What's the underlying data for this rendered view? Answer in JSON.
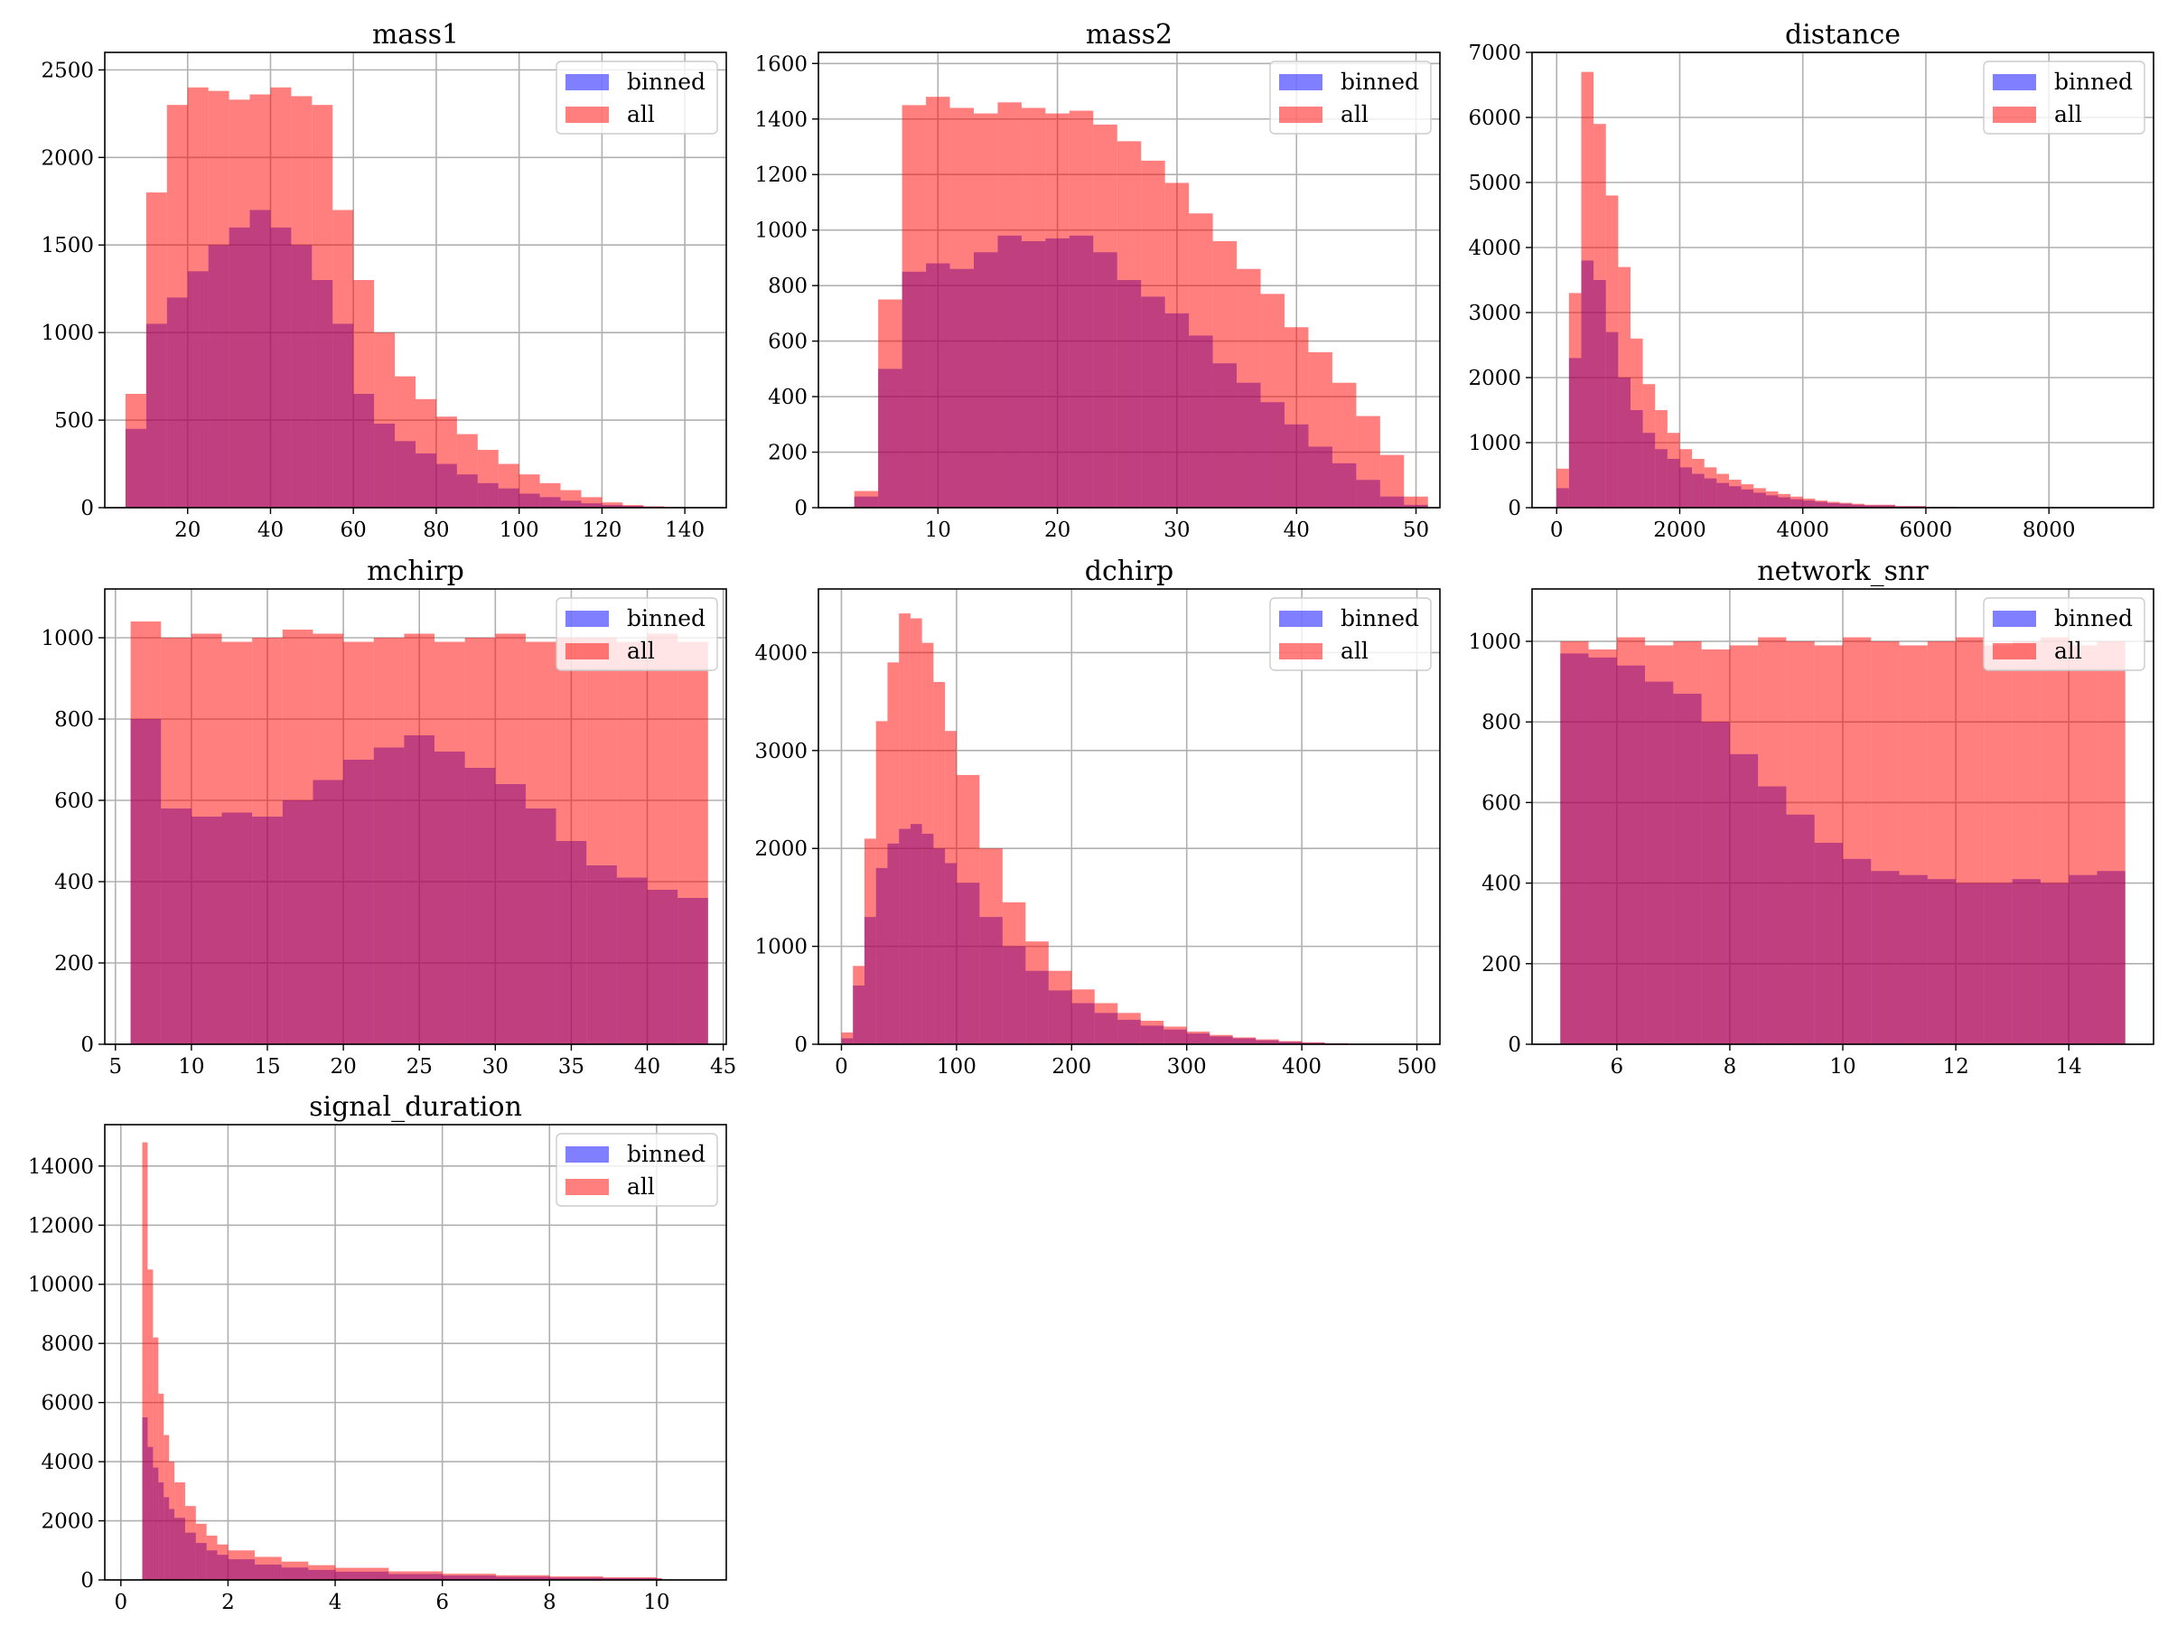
{
  "chart_data": [
    {
      "type": "bar",
      "title": "mass1",
      "xlim": [
        0,
        150
      ],
      "ylim": [
        0,
        2600
      ],
      "xticks": [
        20,
        40,
        60,
        80,
        100,
        120,
        140
      ],
      "yticks": [
        0,
        500,
        1000,
        1500,
        2000,
        2500
      ],
      "legend_position": "upper right",
      "series": [
        {
          "name": "binned",
          "color": "#0000ff",
          "opacity": 0.5,
          "x": [
            5,
            10,
            15,
            20,
            25,
            30,
            35,
            40,
            45,
            50,
            55,
            60,
            65,
            70,
            75,
            80,
            85,
            90,
            95,
            100,
            105,
            110,
            115,
            120,
            125,
            130,
            135,
            140
          ],
          "y": [
            450,
            1050,
            1200,
            1350,
            1500,
            1600,
            1700,
            1600,
            1500,
            1300,
            1050,
            650,
            480,
            380,
            310,
            250,
            190,
            140,
            110,
            80,
            60,
            40,
            25,
            15,
            10,
            5,
            3,
            2
          ]
        },
        {
          "name": "all",
          "color": "#ff0000",
          "opacity": 0.5,
          "x": [
            5,
            10,
            15,
            20,
            25,
            30,
            35,
            40,
            45,
            50,
            55,
            60,
            65,
            70,
            75,
            80,
            85,
            90,
            95,
            100,
            105,
            110,
            115,
            120,
            125,
            130,
            135,
            140
          ],
          "y": [
            650,
            1800,
            2300,
            2400,
            2380,
            2330,
            2360,
            2400,
            2350,
            2300,
            1700,
            1300,
            1000,
            750,
            620,
            520,
            420,
            330,
            250,
            190,
            140,
            100,
            60,
            30,
            15,
            8,
            4,
            2
          ]
        }
      ]
    },
    {
      "type": "bar",
      "title": "mass2",
      "xlim": [
        0,
        52
      ],
      "ylim": [
        0,
        1640
      ],
      "xticks": [
        10,
        20,
        30,
        40,
        50
      ],
      "yticks": [
        0,
        200,
        400,
        600,
        800,
        1000,
        1200,
        1400,
        1600
      ],
      "legend_position": "upper right",
      "series": [
        {
          "name": "binned",
          "color": "#0000ff",
          "opacity": 0.5,
          "x": [
            3,
            5,
            7,
            9,
            11,
            13,
            15,
            17,
            19,
            21,
            23,
            25,
            27,
            29,
            31,
            33,
            35,
            37,
            39,
            41,
            43,
            45,
            47,
            49
          ],
          "y": [
            40,
            500,
            850,
            880,
            860,
            920,
            980,
            960,
            970,
            980,
            920,
            820,
            760,
            700,
            620,
            520,
            450,
            380,
            300,
            220,
            160,
            100,
            40,
            10
          ]
        },
        {
          "name": "all",
          "color": "#ff0000",
          "opacity": 0.5,
          "x": [
            3,
            5,
            7,
            9,
            11,
            13,
            15,
            17,
            19,
            21,
            23,
            25,
            27,
            29,
            31,
            33,
            35,
            37,
            39,
            41,
            43,
            45,
            47,
            49
          ],
          "y": [
            60,
            750,
            1450,
            1480,
            1440,
            1420,
            1460,
            1440,
            1420,
            1430,
            1380,
            1320,
            1250,
            1170,
            1060,
            960,
            860,
            770,
            650,
            560,
            450,
            330,
            190,
            40
          ]
        }
      ]
    },
    {
      "type": "bar",
      "title": "distance",
      "xlim": [
        -400,
        9700
      ],
      "ylim": [
        0,
        7000
      ],
      "xticks": [
        0,
        2000,
        4000,
        6000,
        8000
      ],
      "yticks": [
        0,
        1000,
        2000,
        3000,
        4000,
        5000,
        6000,
        7000
      ],
      "legend_position": "upper right",
      "series": [
        {
          "name": "binned",
          "color": "#0000ff",
          "opacity": 0.5,
          "x": [
            0,
            200,
            400,
            600,
            800,
            1000,
            1200,
            1400,
            1600,
            1800,
            2000,
            2200,
            2400,
            2600,
            2800,
            3000,
            3200,
            3400,
            3600,
            3800,
            4000,
            4200,
            4400,
            4600,
            4800,
            5000,
            5500,
            6000,
            6500,
            7000
          ],
          "y": [
            300,
            2300,
            3800,
            3500,
            2700,
            2000,
            1500,
            1150,
            900,
            750,
            620,
            520,
            450,
            380,
            330,
            280,
            230,
            190,
            160,
            130,
            110,
            90,
            70,
            60,
            45,
            35,
            20,
            10,
            5,
            2
          ]
        },
        {
          "name": "all",
          "color": "#ff0000",
          "opacity": 0.5,
          "x": [
            0,
            200,
            400,
            600,
            800,
            1000,
            1200,
            1400,
            1600,
            1800,
            2000,
            2200,
            2400,
            2600,
            2800,
            3000,
            3200,
            3400,
            3600,
            3800,
            4000,
            4200,
            4400,
            4600,
            4800,
            5000,
            5500,
            6000,
            6500,
            7000
          ],
          "y": [
            600,
            3300,
            6700,
            5900,
            4800,
            3700,
            2600,
            1900,
            1500,
            1150,
            900,
            750,
            620,
            520,
            430,
            360,
            300,
            250,
            210,
            170,
            140,
            110,
            90,
            75,
            60,
            45,
            25,
            12,
            6,
            2
          ]
        }
      ]
    },
    {
      "type": "bar",
      "title": "mchirp",
      "xlim": [
        4.3,
        45.2
      ],
      "ylim": [
        0,
        1120
      ],
      "xticks": [
        5,
        10,
        15,
        20,
        25,
        30,
        35,
        40,
        45
      ],
      "yticks": [
        0,
        200,
        400,
        600,
        800,
        1000
      ],
      "legend_position": "upper right",
      "series": [
        {
          "name": "binned",
          "color": "#0000ff",
          "opacity": 0.5,
          "x": [
            6,
            8,
            10,
            12,
            14,
            16,
            18,
            20,
            22,
            24,
            26,
            28,
            30,
            32,
            34,
            36,
            38,
            40,
            42
          ],
          "y": [
            800,
            580,
            560,
            570,
            560,
            600,
            650,
            700,
            730,
            760,
            720,
            680,
            640,
            580,
            500,
            440,
            410,
            380,
            360
          ]
        },
        {
          "name": "all",
          "color": "#ff0000",
          "opacity": 0.5,
          "x": [
            6,
            8,
            10,
            12,
            14,
            16,
            18,
            20,
            22,
            24,
            26,
            28,
            30,
            32,
            34,
            36,
            38,
            40,
            42
          ],
          "y": [
            1040,
            1000,
            1010,
            990,
            1000,
            1020,
            1010,
            990,
            1000,
            1010,
            990,
            1000,
            1010,
            990,
            1000,
            1000,
            990,
            1010,
            990
          ]
        }
      ]
    },
    {
      "type": "bar",
      "title": "dchirp",
      "xlim": [
        -20,
        520
      ],
      "ylim": [
        0,
        4650
      ],
      "xticks": [
        0,
        100,
        200,
        300,
        400,
        500
      ],
      "yticks": [
        0,
        1000,
        2000,
        3000,
        4000
      ],
      "legend_position": "upper right",
      "series": [
        {
          "name": "binned",
          "color": "#0000ff",
          "opacity": 0.5,
          "x": [
            0,
            10,
            20,
            30,
            40,
            50,
            60,
            70,
            80,
            90,
            100,
            120,
            140,
            160,
            180,
            200,
            220,
            240,
            260,
            280,
            300,
            320,
            340,
            360,
            380,
            400,
            420,
            440
          ],
          "y": [
            60,
            600,
            1300,
            1800,
            2050,
            2200,
            2250,
            2150,
            2000,
            1850,
            1650,
            1300,
            1000,
            750,
            550,
            420,
            320,
            250,
            190,
            150,
            110,
            80,
            60,
            40,
            25,
            15,
            8,
            4
          ]
        },
        {
          "name": "all",
          "color": "#ff0000",
          "opacity": 0.5,
          "x": [
            0,
            10,
            20,
            30,
            40,
            50,
            60,
            70,
            80,
            90,
            100,
            120,
            140,
            160,
            180,
            200,
            220,
            240,
            260,
            280,
            300,
            320,
            340,
            360,
            380,
            400,
            420,
            440
          ],
          "y": [
            120,
            800,
            2100,
            3300,
            3900,
            4400,
            4350,
            4100,
            3700,
            3200,
            2750,
            2000,
            1450,
            1050,
            750,
            560,
            420,
            320,
            240,
            180,
            130,
            95,
            70,
            50,
            32,
            20,
            10,
            5
          ]
        }
      ]
    },
    {
      "type": "bar",
      "title": "network_snr",
      "xlim": [
        4.5,
        15.5
      ],
      "ylim": [
        0,
        1130
      ],
      "xticks": [
        6,
        8,
        10,
        12,
        14
      ],
      "yticks": [
        0,
        200,
        400,
        600,
        800,
        1000
      ],
      "legend_position": "upper right",
      "series": [
        {
          "name": "binned",
          "color": "#0000ff",
          "opacity": 0.5,
          "x": [
            5,
            5.5,
            6,
            6.5,
            7,
            7.5,
            8,
            8.5,
            9,
            9.5,
            10,
            10.5,
            11,
            11.5,
            12,
            12.5,
            13,
            13.5,
            14,
            14.5
          ],
          "y": [
            970,
            960,
            940,
            900,
            870,
            800,
            720,
            640,
            570,
            500,
            460,
            430,
            420,
            410,
            400,
            400,
            410,
            400,
            420,
            430
          ]
        },
        {
          "name": "all",
          "color": "#ff0000",
          "opacity": 0.5,
          "x": [
            5,
            5.5,
            6,
            6.5,
            7,
            7.5,
            8,
            8.5,
            9,
            9.5,
            10,
            10.5,
            11,
            11.5,
            12,
            12.5,
            13,
            13.5,
            14,
            14.5
          ],
          "y": [
            1000,
            980,
            1010,
            990,
            1000,
            980,
            990,
            1010,
            1000,
            990,
            1010,
            1000,
            990,
            1000,
            1010,
            990,
            1000,
            1010,
            990,
            1000
          ]
        }
      ]
    },
    {
      "type": "bar",
      "title": "signal_duration",
      "xlim": [
        -0.3,
        11.3
      ],
      "ylim": [
        0,
        15400
      ],
      "xticks": [
        0,
        2,
        4,
        6,
        8,
        10
      ],
      "yticks": [
        0,
        2000,
        4000,
        6000,
        8000,
        10000,
        12000,
        14000
      ],
      "legend_position": "upper right",
      "series": [
        {
          "name": "binned",
          "color": "#0000ff",
          "opacity": 0.5,
          "x": [
            0.4,
            0.5,
            0.6,
            0.7,
            0.8,
            0.9,
            1.0,
            1.2,
            1.4,
            1.6,
            1.8,
            2.0,
            2.5,
            3.0,
            3.5,
            4.0,
            5.0,
            6.0,
            7.0,
            8.0,
            9.0,
            10.0
          ],
          "y": [
            5500,
            4500,
            3800,
            3300,
            2800,
            2400,
            2100,
            1600,
            1250,
            1000,
            850,
            700,
            520,
            420,
            340,
            280,
            200,
            150,
            110,
            80,
            60,
            40
          ]
        },
        {
          "name": "all",
          "color": "#ff0000",
          "opacity": 0.5,
          "x": [
            0.4,
            0.5,
            0.6,
            0.7,
            0.8,
            0.9,
            1.0,
            1.2,
            1.4,
            1.6,
            1.8,
            2.0,
            2.5,
            3.0,
            3.5,
            4.0,
            5.0,
            6.0,
            7.0,
            8.0,
            9.0,
            10.0
          ],
          "y": [
            14800,
            10500,
            8200,
            6300,
            4900,
            4000,
            3300,
            2500,
            1900,
            1500,
            1200,
            1000,
            780,
            620,
            500,
            410,
            290,
            210,
            160,
            120,
            90,
            60
          ]
        }
      ]
    }
  ]
}
